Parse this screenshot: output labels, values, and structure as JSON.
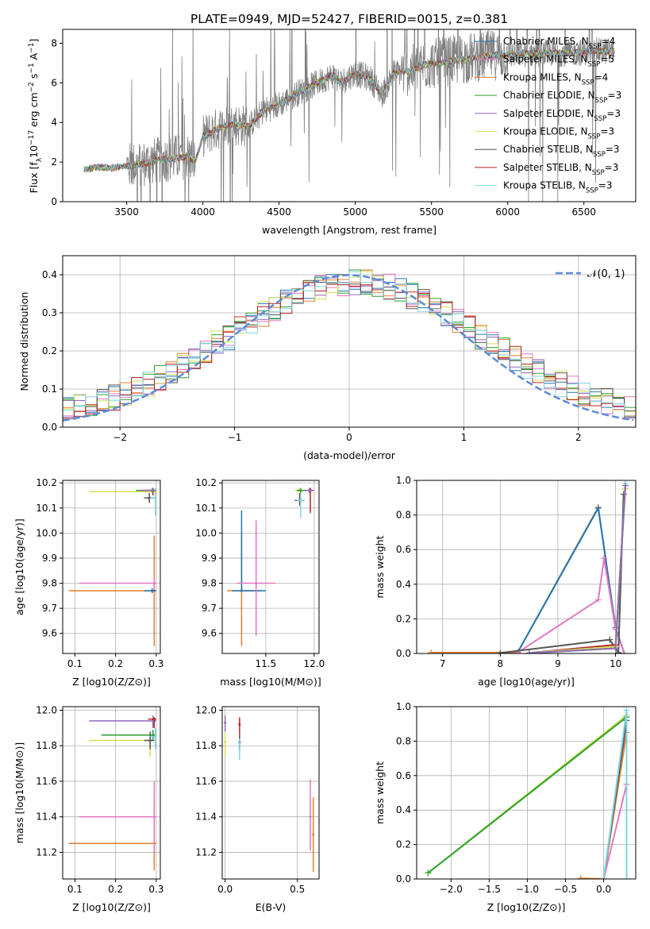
{
  "title": "PLATE=0949, MJD=52427, FIBERID=0015, z=0.381",
  "palette": {
    "Chabrier MILES": "#1f77b4",
    "Salpeter MILES": "#e377c2",
    "Kroupa MILES": "#e08030",
    "Chabrier ELODIE": "#2ca02c",
    "Salpeter ELODIE": "#9467bd",
    "Kroupa ELODIE": "#d4e157",
    "Chabrier STELIB": "#555555",
    "Salpeter STELIB": "#b22222",
    "Kroupa STELIB": "#80d4e0",
    "gauss": "#5b8bd9"
  },
  "chart_data": [
    {
      "id": "spectrum",
      "type": "line",
      "xlabel": "wavelength [Angstrom, rest frame]",
      "ylabel": "Flux [f_λ 10^-17 erg cm^-2 s^-1 A^-1]",
      "xlim": [
        3080,
        6840
      ],
      "ylim": [
        0,
        8.7
      ],
      "xticks": [
        3500,
        4000,
        4500,
        5000,
        5500,
        6000,
        6500
      ],
      "yticks": [
        0,
        2,
        4,
        6,
        8
      ],
      "grid": false,
      "legend_position": "right",
      "data_color": "#808080",
      "legend": [
        {
          "model": "Chabrier MILES",
          "nssp": "4"
        },
        {
          "model": "Salpeter MILES",
          "nssp": "5"
        },
        {
          "model": "Kroupa MILES",
          "nssp": "4"
        },
        {
          "model": "Chabrier ELODIE",
          "nssp": "3"
        },
        {
          "model": "Salpeter ELODIE",
          "nssp": "3"
        },
        {
          "model": "Kroupa ELODIE",
          "nssp": "3"
        },
        {
          "model": "Chabrier STELIB",
          "nssp": "3"
        },
        {
          "model": "Salpeter STELIB",
          "nssp": "3"
        },
        {
          "model": "Kroupa STELIB",
          "nssp": "3"
        }
      ],
      "continuum": [
        [
          3220,
          1.6
        ],
        [
          3300,
          1.75
        ],
        [
          3400,
          1.7
        ],
        [
          3500,
          1.8
        ],
        [
          3600,
          1.9
        ],
        [
          3700,
          2.1
        ],
        [
          3800,
          2.2
        ],
        [
          3900,
          2.3
        ],
        [
          3950,
          2.0
        ],
        [
          4000,
          3.3
        ],
        [
          4100,
          3.7
        ],
        [
          4200,
          3.9
        ],
        [
          4300,
          3.8
        ],
        [
          4400,
          4.6
        ],
        [
          4500,
          4.9
        ],
        [
          4600,
          5.4
        ],
        [
          4700,
          5.8
        ],
        [
          4800,
          6.2
        ],
        [
          4860,
          6.4
        ],
        [
          4900,
          6.0
        ],
        [
          5000,
          6.5
        ],
        [
          5100,
          6.2
        ],
        [
          5175,
          5.4
        ],
        [
          5250,
          6.5
        ],
        [
          5350,
          6.6
        ],
        [
          5450,
          6.9
        ],
        [
          5550,
          7.0
        ],
        [
          5700,
          7.2
        ],
        [
          5800,
          7.3
        ],
        [
          5900,
          7.4
        ],
        [
          6000,
          7.4
        ],
        [
          6200,
          7.5
        ],
        [
          6400,
          7.5
        ],
        [
          6560,
          7.6
        ],
        [
          6700,
          7.6
        ]
      ]
    },
    {
      "id": "residuals",
      "type": "line",
      "xlabel": "(data-model)/error",
      "ylabel": "Normed distribution",
      "xlim": [
        -2.5,
        2.5
      ],
      "ylim": [
        0,
        0.45
      ],
      "xticks": [
        -2,
        -1,
        0,
        1,
        2
      ],
      "yticks": [
        0.0,
        0.1,
        0.2,
        0.3,
        0.4
      ],
      "grid": true,
      "legend_position": "top-right",
      "gauss_label": "𝒩(0, 1)"
    },
    {
      "id": "age-vs-Z",
      "type": "scatter",
      "xlabel": "Z [log10(Z/Z⊙)]",
      "ylabel": "age [log10(age/yr)]",
      "xlim": [
        0.07,
        0.31
      ],
      "ylim": [
        9.52,
        10.21
      ],
      "xticks": [
        0.1,
        0.2,
        0.3
      ],
      "yticks": [
        9.6,
        9.7,
        9.8,
        9.9,
        10.0,
        10.1,
        10.2
      ],
      "grid": true,
      "points": [
        {
          "model": "Kroupa MILES",
          "x": 0.295,
          "y": 9.77,
          "xlo": 0.085,
          "xhi": 0.3,
          "ylo": 9.55,
          "yhi": 9.99
        },
        {
          "model": "Salpeter MILES",
          "x": 0.295,
          "y": 9.8,
          "xlo": 0.11,
          "xhi": 0.3,
          "ylo": 9.78,
          "yhi": 9.82
        },
        {
          "model": "Chabrier MILES",
          "x": 0.29,
          "y": 9.77,
          "xlo": 0.27,
          "xhi": 0.3,
          "ylo": 9.76,
          "yhi": 9.78
        },
        {
          "model": "Chabrier STELIB",
          "x": 0.283,
          "y": 10.14,
          "xlo": 0.27,
          "xhi": 0.295,
          "ylo": 10.12,
          "yhi": 10.16
        },
        {
          "model": "Salpeter STELIB",
          "x": 0.292,
          "y": 10.17,
          "xlo": 0.26,
          "xhi": 0.3,
          "ylo": 10.15,
          "yhi": 10.18
        },
        {
          "model": "Kroupa STELIB",
          "x": 0.298,
          "y": 10.14,
          "xlo": 0.285,
          "xhi": 0.3,
          "ylo": 10.07,
          "yhi": 10.18
        },
        {
          "model": "Kroupa ELODIE",
          "x": 0.295,
          "y": 10.165,
          "xlo": 0.135,
          "xhi": 0.3,
          "ylo": 10.16,
          "yhi": 10.17
        },
        {
          "model": "Chabrier ELODIE",
          "x": 0.292,
          "y": 10.17,
          "xlo": 0.25,
          "xhi": 0.3,
          "ylo": 10.16,
          "yhi": 10.18
        },
        {
          "model": "Salpeter ELODIE",
          "x": 0.29,
          "y": 10.17,
          "xlo": 0.26,
          "xhi": 0.3,
          "ylo": 10.16,
          "yhi": 10.18
        }
      ]
    },
    {
      "id": "age-vs-mass",
      "type": "scatter",
      "xlabel": "mass [log10(M/M⊙)]",
      "ylabel": "",
      "xlim": [
        11.05,
        12.05
      ],
      "ylim": [
        9.52,
        10.21
      ],
      "xticks": [
        11.5,
        12.0
      ],
      "yticks": [
        9.6,
        9.7,
        9.8,
        9.9,
        10.0,
        10.1,
        10.2
      ],
      "grid": true,
      "points": [
        {
          "model": "Kroupa MILES",
          "x": 11.25,
          "y": 9.77,
          "xlo": 11.1,
          "xhi": 11.45,
          "ylo": 9.55,
          "yhi": 10.0
        },
        {
          "model": "Chabrier MILES",
          "x": 11.25,
          "y": 9.77,
          "xlo": 11.15,
          "xhi": 11.5,
          "ylo": 9.77,
          "yhi": 10.09
        },
        {
          "model": "Salpeter MILES",
          "x": 11.4,
          "y": 9.8,
          "xlo": 11.2,
          "xhi": 11.6,
          "ylo": 9.59,
          "yhi": 10.05
        },
        {
          "model": "Chabrier STELIB",
          "x": 11.85,
          "y": 10.13,
          "xlo": 11.8,
          "xhi": 11.9,
          "ylo": 10.11,
          "yhi": 10.16
        },
        {
          "model": "Kroupa STELIB",
          "x": 11.86,
          "y": 10.13,
          "xlo": 11.82,
          "xhi": 11.9,
          "ylo": 10.06,
          "yhi": 10.17
        },
        {
          "model": "Salpeter STELIB",
          "x": 11.96,
          "y": 10.17,
          "xlo": 11.9,
          "xhi": 11.98,
          "ylo": 10.08,
          "yhi": 10.18
        },
        {
          "model": "Kroupa ELODIE",
          "x": 11.84,
          "y": 10.17,
          "xlo": 11.8,
          "xhi": 11.88,
          "ylo": 10.16,
          "yhi": 10.18
        },
        {
          "model": "Chabrier ELODIE",
          "x": 11.86,
          "y": 10.17,
          "xlo": 11.82,
          "xhi": 11.9,
          "ylo": 10.16,
          "yhi": 10.18
        },
        {
          "model": "Salpeter ELODIE",
          "x": 11.95,
          "y": 10.17,
          "xlo": 11.9,
          "xhi": 12.0,
          "ylo": 10.16,
          "yhi": 10.18
        }
      ]
    },
    {
      "id": "weight-vs-age",
      "type": "line",
      "xlabel": "age [log10(age/yr)]",
      "ylabel": "mass weight",
      "xlim": [
        6.55,
        10.35
      ],
      "ylim": [
        0,
        1
      ],
      "xticks": [
        7,
        8,
        9,
        10
      ],
      "yticks": [
        0.0,
        0.2,
        0.4,
        0.6,
        0.8,
        1.0
      ],
      "grid": true,
      "series": [
        {
          "model": "Kroupa MILES",
          "x": [
            6.8,
            8.3,
            9.7,
            10.0,
            10.15
          ],
          "y": [
            0.005,
            0.005,
            0.845,
            0.15,
            0.0
          ]
        },
        {
          "model": "Chabrier MILES",
          "x": [
            8.3,
            9.7,
            10.0,
            10.15
          ],
          "y": [
            0.005,
            0.84,
            0.15,
            0.0
          ]
        },
        {
          "model": "Salpeter MILES",
          "x": [
            8.3,
            9.7,
            9.8,
            10.0,
            10.15
          ],
          "y": [
            0.005,
            0.31,
            0.55,
            0.14,
            0.0
          ]
        },
        {
          "model": "Chabrier STELIB",
          "x": [
            8.0,
            9.9,
            10.05,
            10.14
          ],
          "y": [
            0.003,
            0.08,
            0.005,
            0.92
          ]
        },
        {
          "model": "Salpeter STELIB",
          "x": [
            8.5,
            10.0,
            10.17
          ],
          "y": [
            0.003,
            0.05,
            0.95
          ]
        },
        {
          "model": "Kroupa STELIB",
          "x": [
            8.5,
            10.0,
            10.17
          ],
          "y": [
            0.003,
            0.04,
            0.98
          ]
        },
        {
          "model": "Kroupa ELODIE",
          "x": [
            8.5,
            10.0,
            10.17
          ],
          "y": [
            0.002,
            0.04,
            0.95
          ]
        },
        {
          "model": "Chabrier ELODIE",
          "x": [
            8.5,
            10.0,
            10.17
          ],
          "y": [
            0.002,
            0.03,
            0.97
          ]
        },
        {
          "model": "Salpeter ELODIE",
          "x": [
            8.5,
            10.0,
            10.17
          ],
          "y": [
            0.002,
            0.03,
            0.97
          ]
        }
      ]
    },
    {
      "id": "mass-vs-Z",
      "type": "scatter",
      "xlabel": "Z [log10(Z/Z⊙)]",
      "ylabel": "mass [log10(M/M⊙)]",
      "xlim": [
        0.07,
        0.31
      ],
      "ylim": [
        11.05,
        12.02
      ],
      "xticks": [
        0.1,
        0.2,
        0.3
      ],
      "yticks": [
        11.2,
        11.4,
        11.6,
        11.8,
        12.0
      ],
      "grid": true,
      "points": [
        {
          "model": "Kroupa MILES",
          "x": 0.295,
          "y": 11.25,
          "xlo": 0.085,
          "xhi": 0.3,
          "ylo": 11.1,
          "yhi": 11.5
        },
        {
          "model": "Salpeter MILES",
          "x": 0.295,
          "y": 11.4,
          "xlo": 0.11,
          "xhi": 0.3,
          "ylo": 11.2,
          "yhi": 11.6
        },
        {
          "model": "Salpeter ELODIE",
          "x": 0.292,
          "y": 11.94,
          "xlo": 0.135,
          "xhi": 0.3,
          "ylo": 11.9,
          "yhi": 11.97
        },
        {
          "model": "Chabrier ELODIE",
          "x": 0.292,
          "y": 11.86,
          "xlo": 0.165,
          "xhi": 0.3,
          "ylo": 11.83,
          "yhi": 11.89
        },
        {
          "model": "Kroupa ELODIE",
          "x": 0.285,
          "y": 11.83,
          "xlo": 0.135,
          "xhi": 0.3,
          "ylo": 11.74,
          "yhi": 11.86
        },
        {
          "model": "Chabrier STELIB",
          "x": 0.285,
          "y": 11.83,
          "xlo": 0.27,
          "xhi": 0.295,
          "ylo": 11.78,
          "yhi": 11.88
        },
        {
          "model": "Salpeter STELIB",
          "x": 0.295,
          "y": 11.95,
          "xlo": 0.28,
          "xhi": 0.3,
          "ylo": 11.9,
          "yhi": 11.96
        },
        {
          "model": "Kroupa STELIB",
          "x": 0.298,
          "y": 11.85,
          "xlo": 0.285,
          "xhi": 0.3,
          "ylo": 11.78,
          "yhi": 11.9
        }
      ]
    },
    {
      "id": "mass-vs-EBV",
      "type": "scatter",
      "xlabel": "E(B-V)",
      "ylabel": "",
      "xlim": [
        -0.02,
        0.65
      ],
      "ylim": [
        11.05,
        12.02
      ],
      "xticks": [
        0.0,
        0.5
      ],
      "yticks": [
        11.2,
        11.4,
        11.6,
        11.8,
        12.0
      ],
      "grid": true,
      "points": [
        {
          "model": "Salpeter ELODIE",
          "x": 0.0,
          "y": 11.93,
          "xlo": 0.0,
          "xhi": 0.0,
          "ylo": 11.88,
          "yhi": 11.97
        },
        {
          "model": "Kroupa ELODIE",
          "x": 0.0,
          "y": 11.82,
          "xlo": 0.0,
          "xhi": 0.0,
          "ylo": 11.74,
          "yhi": 11.87
        },
        {
          "model": "Salpeter STELIB",
          "x": 0.1,
          "y": 11.92,
          "xlo": 0.1,
          "xhi": 0.1,
          "ylo": 11.86,
          "yhi": 11.96
        },
        {
          "model": "Chabrier STELIB",
          "x": 0.1,
          "y": 11.82,
          "xlo": 0.1,
          "xhi": 0.1,
          "ylo": 11.77,
          "yhi": 11.86
        },
        {
          "model": "Kroupa STELIB",
          "x": 0.1,
          "y": 11.79,
          "xlo": 0.1,
          "xhi": 0.1,
          "ylo": 11.72,
          "yhi": 11.84
        },
        {
          "model": "Salpeter MILES",
          "x": 0.59,
          "y": 11.4,
          "xlo": 0.59,
          "xhi": 0.59,
          "ylo": 11.21,
          "yhi": 11.61
        },
        {
          "model": "Kroupa MILES",
          "x": 0.61,
          "y": 11.3,
          "xlo": 0.61,
          "xhi": 0.61,
          "ylo": 11.09,
          "yhi": 11.51
        }
      ]
    },
    {
      "id": "weight-vs-Z",
      "type": "line",
      "xlabel": "Z [log10(Z/Z⊙)]",
      "ylabel": "mass weight",
      "xlim": [
        -2.45,
        0.42
      ],
      "ylim": [
        0,
        1
      ],
      "xticks": [
        -2.0,
        -1.5,
        -1.0,
        -0.5,
        0.0
      ],
      "yticks": [
        0.0,
        0.2,
        0.4,
        0.6,
        0.8,
        1.0
      ],
      "grid": true,
      "series": [
        {
          "model": "Kroupa MILES",
          "x": [
            -0.3,
            0.0,
            0.3
          ],
          "y": [
            0.003,
            0.0,
            0.85
          ]
        },
        {
          "model": "Salpeter MILES",
          "x": [
            0.0,
            0.3
          ],
          "y": [
            0.0,
            0.55
          ]
        },
        {
          "model": "Chabrier STELIB",
          "x": [
            0.0,
            0.3
          ],
          "y": [
            0.0,
            0.92
          ]
        },
        {
          "model": "Kroupa ELODIE",
          "x": [
            -2.3,
            0.3
          ],
          "y": [
            0.035,
            0.95
          ]
        },
        {
          "model": "Chabrier ELODIE",
          "x": [
            -2.3,
            0.3
          ],
          "y": [
            0.035,
            0.94
          ]
        },
        {
          "model": "Kroupa STELIB",
          "x": [
            0.0,
            0.3,
            0.3
          ],
          "y": [
            0.0,
            0.98,
            0.0
          ]
        }
      ]
    }
  ]
}
